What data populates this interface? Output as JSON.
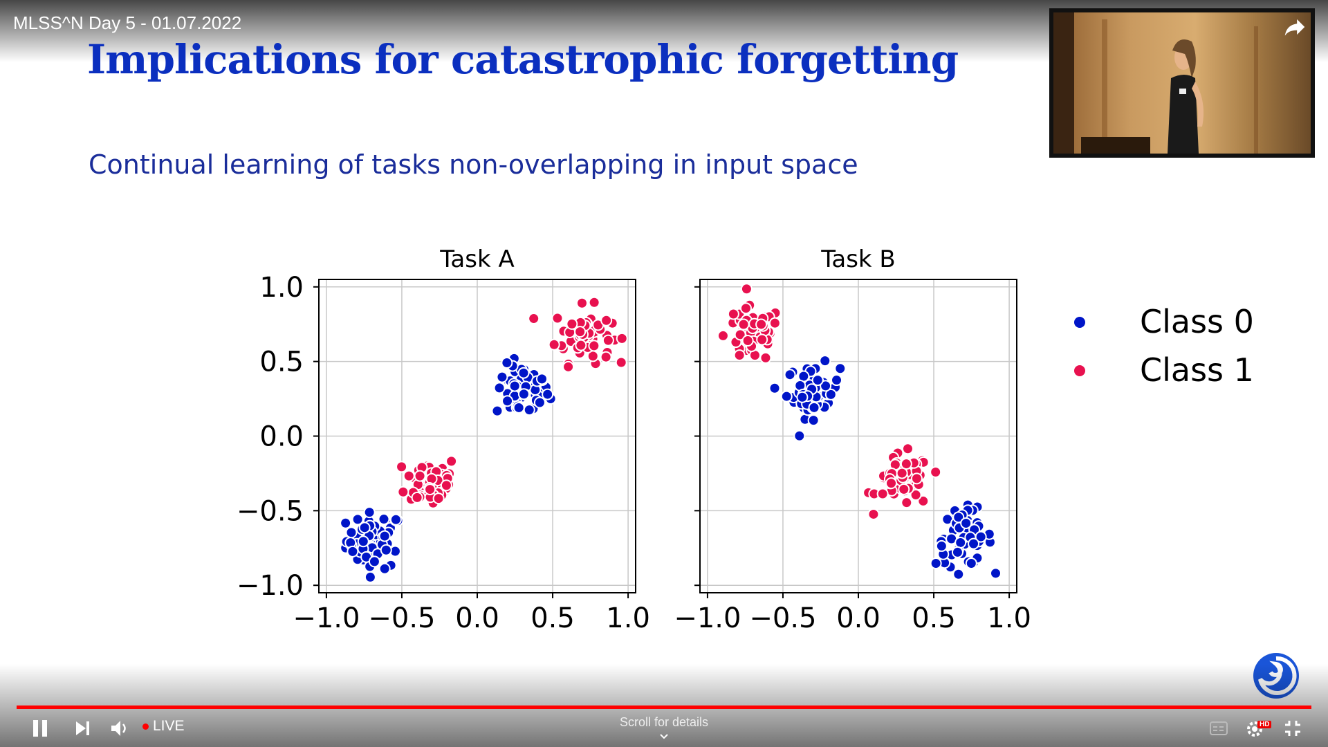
{
  "video": {
    "title": "MLSS^N Day 5 - 01.07.2022"
  },
  "slide": {
    "title": "Implications for catastrophic forgetting",
    "subtitle": "Continual learning of tasks non-overlapping in input space"
  },
  "player": {
    "live_label": "LIVE",
    "scroll_label": "Scroll for details",
    "hd_badge": "HD"
  },
  "icons": {
    "pause": "pause-icon",
    "next": "next-icon",
    "volume": "volume-icon",
    "captions": "captions-icon",
    "settings": "settings-icon",
    "exit_fullscreen": "exit-fullscreen-icon",
    "share": "share-icon",
    "channel_logo": "channel-logo-icon"
  },
  "colors": {
    "class0": "#0015c8",
    "class1": "#e8114f",
    "title": "#0b2fbf",
    "progress": "#ff0000"
  },
  "chart_data": [
    {
      "type": "scatter",
      "title": "Task A",
      "xlim": [
        -1.05,
        1.05
      ],
      "ylim": [
        -1.05,
        1.05
      ],
      "xticks": [
        "−1.0",
        "−0.5",
        "0.0",
        "0.5",
        "1.0"
      ],
      "yticks": [
        "−1.0",
        "−0.5",
        "0.0",
        "0.5",
        "1.0"
      ],
      "grid": true,
      "series": [
        {
          "name": "Class 0",
          "color": "#0015c8",
          "clusters": [
            {
              "center": [
                -0.68,
                -0.7
              ],
              "spread": 0.17,
              "count": 60
            },
            {
              "center": [
                0.3,
                0.3
              ],
              "spread": 0.16,
              "count": 55
            }
          ]
        },
        {
          "name": "Class 1",
          "color": "#e8114f",
          "clusters": [
            {
              "center": [
                -0.3,
                -0.3
              ],
              "spread": 0.16,
              "count": 55
            },
            {
              "center": [
                0.7,
                0.68
              ],
              "spread": 0.17,
              "count": 60
            }
          ]
        }
      ]
    },
    {
      "type": "scatter",
      "title": "Task B",
      "xlim": [
        -1.05,
        1.05
      ],
      "ylim": [
        -1.05,
        1.05
      ],
      "xticks": [
        "−1.0",
        "−0.5",
        "0.0",
        "0.5",
        "1.0"
      ],
      "yticks": [],
      "grid": true,
      "series": [
        {
          "name": "Class 0",
          "color": "#0015c8",
          "clusters": [
            {
              "center": [
                -0.3,
                0.3
              ],
              "spread": 0.16,
              "count": 55
            },
            {
              "center": [
                0.7,
                -0.68
              ],
              "spread": 0.17,
              "count": 60
            }
          ]
        },
        {
          "name": "Class 1",
          "color": "#e8114f",
          "clusters": [
            {
              "center": [
                -0.7,
                0.68
              ],
              "spread": 0.17,
              "count": 60
            },
            {
              "center": [
                0.3,
                -0.3
              ],
              "spread": 0.16,
              "count": 55
            }
          ]
        }
      ]
    }
  ],
  "legend": {
    "placement": "right",
    "items": [
      {
        "label": "Class 0",
        "color": "#0015c8"
      },
      {
        "label": "Class 1",
        "color": "#e8114f"
      }
    ]
  }
}
